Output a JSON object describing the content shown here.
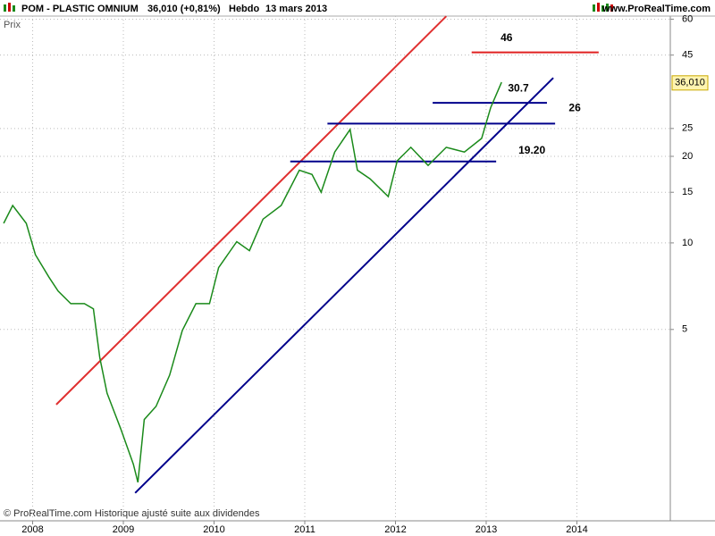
{
  "header": {
    "symbol": "POM - PLASTIC OMNIUM",
    "quote": "36,010 (+0,81%)",
    "period": "Hebdo",
    "date": "13 mars 2013",
    "site": "www.ProRealTime.com"
  },
  "chart_data": {
    "type": "line",
    "y_label": "Prix",
    "footer": "© ProRealTime.com Historique ajusté suite aux dividendes",
    "log_scale": true,
    "grid": true,
    "x": [
      2007.68,
      2007.78,
      2007.93,
      2008.03,
      2008.18,
      2008.28,
      2008.42,
      2008.57,
      2008.67,
      2008.74,
      2008.82,
      2008.97,
      2009.11,
      2009.16,
      2009.23,
      2009.36,
      2009.51,
      2009.65,
      2009.8,
      2009.95,
      2010.05,
      2010.25,
      2010.39,
      2010.54,
      2010.74,
      2010.94,
      2011.08,
      2011.18,
      2011.33,
      2011.5,
      2011.58,
      2011.72,
      2011.92,
      2012.02,
      2012.17,
      2012.36,
      2012.56,
      2012.76,
      2012.95,
      2013.05,
      2013.17
    ],
    "series": [
      {
        "color": "#1a8a1a",
        "values": [
          11.7,
          13.5,
          11.7,
          9.1,
          7.6,
          6.8,
          6.15,
          6.15,
          5.9,
          4.0,
          3.0,
          2.26,
          1.7,
          1.47,
          2.43,
          2.7,
          3.47,
          4.96,
          6.15,
          6.15,
          8.2,
          10.1,
          9.4,
          12.1,
          13.5,
          17.9,
          17.3,
          15.0,
          20.7,
          24.8,
          17.9,
          16.7,
          14.5,
          19.3,
          21.5,
          18.6,
          21.5,
          20.7,
          23.1,
          29.6,
          36.2
        ]
      }
    ],
    "last_price": {
      "value": 36.01,
      "label": "36,010"
    },
    "xlim": [
      2007.64,
      2015.03
    ],
    "xticks": [
      2008,
      2009,
      2010,
      2011,
      2012,
      2013,
      2014
    ],
    "ylim": [
      1.08,
      61.5
    ],
    "yticks": [
      5,
      10,
      15,
      20,
      25,
      45,
      60
    ],
    "levels": [
      {
        "value": 46,
        "label": "46",
        "x": [
          2012.84,
          2014.24
        ],
        "color": "#e02020"
      },
      {
        "value": 30.7,
        "label": "30.7",
        "x": [
          2012.41,
          2013.67
        ],
        "color": "#00008b"
      },
      {
        "value": 26,
        "label": "26",
        "x": [
          2011.25,
          2013.76
        ],
        "color": "#00008b"
      },
      {
        "value": 19.2,
        "label": "19.20",
        "x": [
          2010.84,
          2013.11
        ],
        "color": "#00008b"
      }
    ],
    "trend_lines": [
      {
        "x": [
          2008.26,
          2012.56
        ],
        "y": [
          2.74,
          61.4
        ],
        "color": "#e03030"
      },
      {
        "x": [
          2009.13,
          2013.74
        ],
        "y": [
          1.35,
          37.5
        ],
        "color": "#00008b"
      }
    ]
  }
}
